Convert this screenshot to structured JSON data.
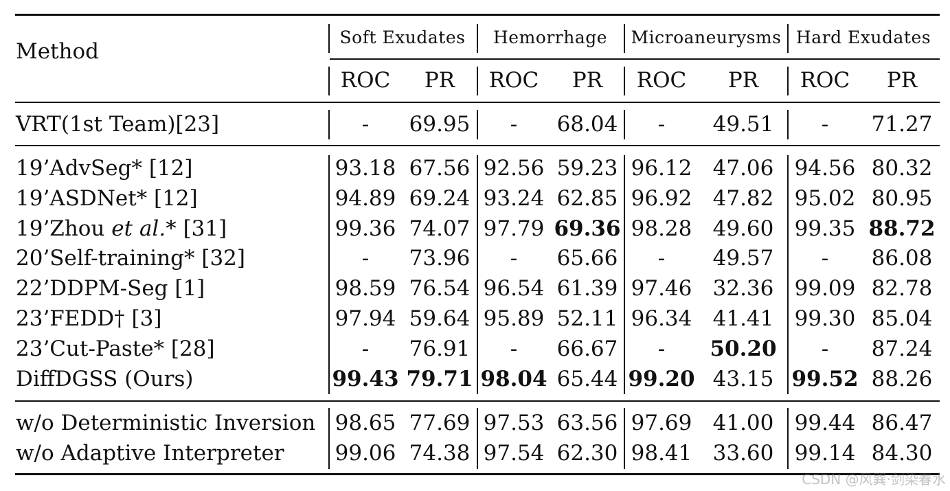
{
  "header": {
    "method_label": "Method",
    "groups": [
      "Soft Exudates",
      "Hemorrhage",
      "Microaneurysms",
      "Hard Exudates"
    ],
    "roc_label": "ROC",
    "pr_label": "PR"
  },
  "rows": [
    {
      "method": "VRT(1st Team)[23]",
      "values": [
        "-",
        "69.95",
        "-",
        "68.04",
        "-",
        "49.51",
        "-",
        "71.27"
      ],
      "bold": []
    },
    {
      "method": "19’AdvSeg* [12]",
      "values": [
        "93.18",
        "67.56",
        "92.56",
        "59.23",
        "96.12",
        "47.06",
        "94.56",
        "80.32"
      ],
      "bold": []
    },
    {
      "method": "19’ASDNet* [12]",
      "values": [
        "94.89",
        "69.24",
        "93.24",
        "62.85",
        "96.92",
        "47.82",
        "95.02",
        "80.95"
      ],
      "bold": []
    },
    {
      "method_prefix": "19’Zhou ",
      "method_italic": "et al.",
      "method_suffix": "* [31]",
      "values": [
        "99.36",
        "74.07",
        "97.79",
        "69.36",
        "98.28",
        "49.60",
        "99.35",
        "88.72"
      ],
      "bold": [
        3,
        7
      ]
    },
    {
      "method": "20’Self-training* [32]",
      "values": [
        "-",
        "73.96",
        "-",
        "65.66",
        "-",
        "49.57",
        "-",
        "86.08"
      ],
      "bold": []
    },
    {
      "method": "22’DDPM-Seg [1]",
      "values": [
        "98.59",
        "76.54",
        "96.54",
        "61.39",
        "97.46",
        "32.36",
        "99.09",
        "82.78"
      ],
      "bold": []
    },
    {
      "method": "23’FEDD† [3]",
      "values": [
        "97.94",
        "59.64",
        "95.89",
        "52.11",
        "96.34",
        "41.41",
        "99.30",
        "85.04"
      ],
      "bold": []
    },
    {
      "method": "23’Cut-Paste* [28]",
      "values": [
        "-",
        "76.91",
        "-",
        "66.67",
        "-",
        "50.20",
        "-",
        "87.24"
      ],
      "bold": [
        5
      ]
    },
    {
      "method": "DiffDGSS (Ours)",
      "values": [
        "99.43",
        "79.71",
        "98.04",
        "65.44",
        "99.20",
        "43.15",
        "99.52",
        "88.26"
      ],
      "bold": [
        0,
        1,
        2,
        4,
        6
      ]
    },
    {
      "method": "w/o Deterministic Inversion",
      "values": [
        "98.65",
        "77.69",
        "97.53",
        "63.56",
        "97.69",
        "41.00",
        "99.44",
        "86.47"
      ],
      "bold": []
    },
    {
      "method": "w/o Adaptive Interpreter",
      "values": [
        "99.06",
        "74.38",
        "97.54",
        "62.30",
        "98.41",
        "33.60",
        "99.14",
        "84.30"
      ],
      "bold": []
    }
  ],
  "watermark": "CSDN @风巽·剑染春水"
}
